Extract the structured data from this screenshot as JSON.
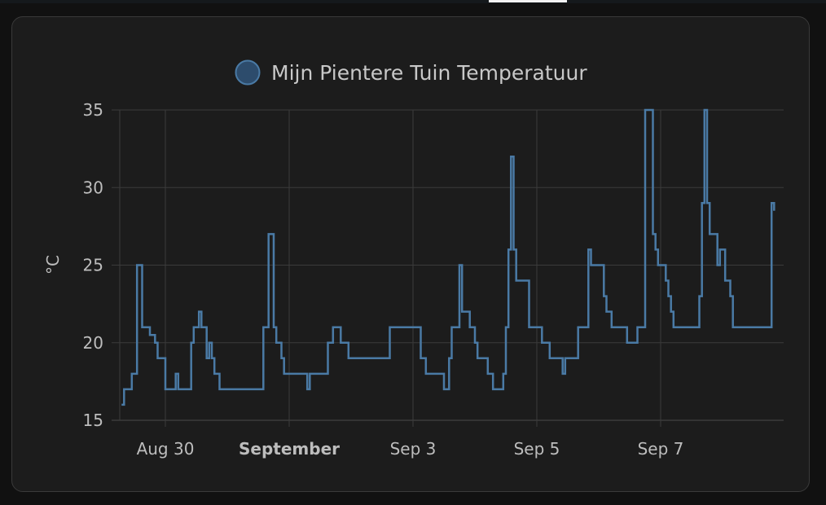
{
  "top_bar": {
    "accent_color": "#f2f2f2"
  },
  "chart_data": {
    "type": "line",
    "line_style": "step",
    "legend_position": "top-center",
    "grid": true,
    "series_color": "#4a7aa5",
    "ylabel": "°C",
    "ylim": [
      15,
      35
    ],
    "y_ticks": [
      15,
      20,
      25,
      30,
      35
    ],
    "x_range": [
      "2023-08-29 00:00",
      "2023-09-09 12:00"
    ],
    "x_ticks": [
      {
        "label": "Aug 30",
        "at": "2023-08-30 00:00",
        "bold": false
      },
      {
        "label": "September",
        "at": "2023-09-01 00:00",
        "bold": true
      },
      {
        "label": "Sep 3",
        "at": "2023-09-03 00:00",
        "bold": false
      },
      {
        "label": "Sep 5",
        "at": "2023-09-05 00:00",
        "bold": false
      },
      {
        "label": "Sep 7",
        "at": "2023-09-07 00:00",
        "bold": false
      }
    ],
    "series": [
      {
        "name": "Mijn Pientere Tuin Temperatuur",
        "points": [
          [
            "2023-08-29 07:00",
            16
          ],
          [
            "2023-08-29 08:00",
            17
          ],
          [
            "2023-08-29 10:00",
            17
          ],
          [
            "2023-08-29 11:00",
            18
          ],
          [
            "2023-08-29 13:00",
            25
          ],
          [
            "2023-08-29 15:00",
            21
          ],
          [
            "2023-08-29 17:00",
            21
          ],
          [
            "2023-08-29 18:00",
            20.5
          ],
          [
            "2023-08-29 20:00",
            20
          ],
          [
            "2023-08-29 21:00",
            19
          ],
          [
            "2023-08-29 22:00",
            19
          ],
          [
            "2023-08-30 00:00",
            17
          ],
          [
            "2023-08-30 03:00",
            17
          ],
          [
            "2023-08-30 04:00",
            18
          ],
          [
            "2023-08-30 05:00",
            17
          ],
          [
            "2023-08-30 09:00",
            17
          ],
          [
            "2023-08-30 10:00",
            20
          ],
          [
            "2023-08-30 11:00",
            21
          ],
          [
            "2023-08-30 13:00",
            22
          ],
          [
            "2023-08-30 14:00",
            21
          ],
          [
            "2023-08-30 16:00",
            19
          ],
          [
            "2023-08-30 17:00",
            20
          ],
          [
            "2023-08-30 18:00",
            19
          ],
          [
            "2023-08-30 19:00",
            18
          ],
          [
            "2023-08-30 21:00",
            17
          ],
          [
            "2023-08-31 13:00",
            17
          ],
          [
            "2023-08-31 14:00",
            21
          ],
          [
            "2023-08-31 16:00",
            27
          ],
          [
            "2023-08-31 18:00",
            21
          ],
          [
            "2023-08-31 19:00",
            20
          ],
          [
            "2023-08-31 21:00",
            19
          ],
          [
            "2023-08-31 22:00",
            18
          ],
          [
            "2023-09-01 06:00",
            18
          ],
          [
            "2023-09-01 07:00",
            17
          ],
          [
            "2023-09-01 08:00",
            18
          ],
          [
            "2023-09-01 14:00",
            18
          ],
          [
            "2023-09-01 15:00",
            20
          ],
          [
            "2023-09-01 17:00",
            21
          ],
          [
            "2023-09-01 20:00",
            20
          ],
          [
            "2023-09-01 23:00",
            19
          ],
          [
            "2023-09-02 14:00",
            19
          ],
          [
            "2023-09-02 15:00",
            21
          ],
          [
            "2023-09-03 02:00",
            21
          ],
          [
            "2023-09-03 03:00",
            19
          ],
          [
            "2023-09-03 05:00",
            18
          ],
          [
            "2023-09-03 11:00",
            18
          ],
          [
            "2023-09-03 12:00",
            17
          ],
          [
            "2023-09-03 14:00",
            19
          ],
          [
            "2023-09-03 15:00",
            21
          ],
          [
            "2023-09-03 18:00",
            25
          ],
          [
            "2023-09-03 19:00",
            22
          ],
          [
            "2023-09-03 22:00",
            21
          ],
          [
            "2023-09-04 00:00",
            20
          ],
          [
            "2023-09-04 01:00",
            19
          ],
          [
            "2023-09-04 05:00",
            18
          ],
          [
            "2023-09-04 07:00",
            17
          ],
          [
            "2023-09-04 11:00",
            18
          ],
          [
            "2023-09-04 12:00",
            21
          ],
          [
            "2023-09-04 13:00",
            26
          ],
          [
            "2023-09-04 14:00",
            32
          ],
          [
            "2023-09-04 15:00",
            26
          ],
          [
            "2023-09-04 16:00",
            24
          ],
          [
            "2023-09-04 21:00",
            21
          ],
          [
            "2023-09-05 02:00",
            20
          ],
          [
            "2023-09-05 05:00",
            19
          ],
          [
            "2023-09-05 10:00",
            18
          ],
          [
            "2023-09-05 11:00",
            19
          ],
          [
            "2023-09-05 16:00",
            21
          ],
          [
            "2023-09-05 20:00",
            26
          ],
          [
            "2023-09-05 21:00",
            25
          ],
          [
            "2023-09-06 02:00",
            23
          ],
          [
            "2023-09-06 03:00",
            22
          ],
          [
            "2023-09-06 05:00",
            21
          ],
          [
            "2023-09-06 11:00",
            20
          ],
          [
            "2023-09-06 15:00",
            21
          ],
          [
            "2023-09-06 18:00",
            35
          ],
          [
            "2023-09-06 21:00",
            27
          ],
          [
            "2023-09-06 22:00",
            26
          ],
          [
            "2023-09-06 23:00",
            25
          ],
          [
            "2023-09-07 02:00",
            24
          ],
          [
            "2023-09-07 03:00",
            23
          ],
          [
            "2023-09-07 04:00",
            22
          ],
          [
            "2023-09-07 05:00",
            21
          ],
          [
            "2023-09-07 15:00",
            23
          ],
          [
            "2023-09-07 16:00",
            29
          ],
          [
            "2023-09-07 17:00",
            35
          ],
          [
            "2023-09-07 18:00",
            29
          ],
          [
            "2023-09-07 19:00",
            27
          ],
          [
            "2023-09-07 22:00",
            25
          ],
          [
            "2023-09-07 23:00",
            26
          ],
          [
            "2023-09-08 01:00",
            24
          ],
          [
            "2023-09-08 03:00",
            23
          ],
          [
            "2023-09-08 04:00",
            21
          ],
          [
            "2023-09-08 19:00",
            29
          ],
          [
            "2023-09-08 20:00",
            28.5
          ]
        ]
      }
    ]
  }
}
